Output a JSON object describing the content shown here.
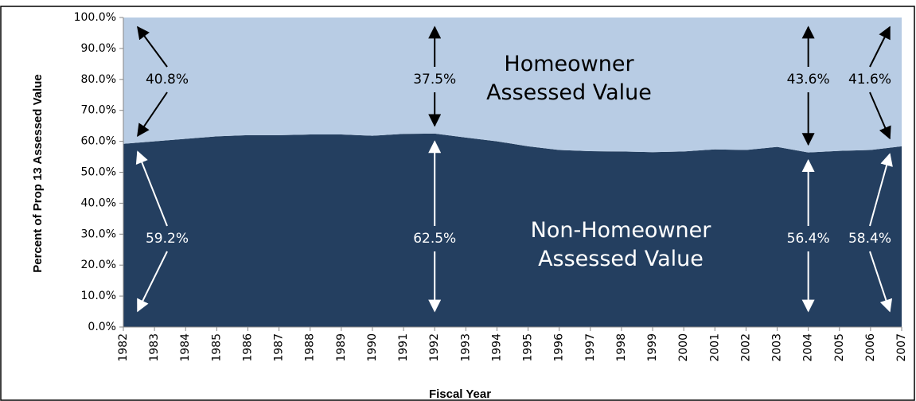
{
  "chart_data": {
    "type": "stacked-area",
    "x_label": "Fiscal Year",
    "y_label": "Percent of Prop 13 Assessed Value",
    "categories": [
      "1982",
      "1983",
      "1984",
      "1985",
      "1986",
      "1987",
      "1988",
      "1989",
      "1990",
      "1991",
      "1992",
      "1993",
      "1994",
      "1995",
      "1996",
      "1997",
      "1998",
      "1999",
      "2000",
      "2001",
      "2002",
      "2003",
      "2004",
      "2005",
      "2006",
      "2007"
    ],
    "series": [
      {
        "name": "Non-Homeowner Assessed Value",
        "color": "#243f60",
        "label_color": "#ffffff",
        "values": [
          59.2,
          60.0,
          60.8,
          61.6,
          62.0,
          62.0,
          62.2,
          62.2,
          61.8,
          62.4,
          62.5,
          61.2,
          60.0,
          58.4,
          57.2,
          56.8,
          56.7,
          56.5,
          56.7,
          57.4,
          57.2,
          58.2,
          56.4,
          56.9,
          57.2,
          58.4
        ],
        "value_labels": [
          "59.2%",
          null,
          null,
          null,
          null,
          null,
          null,
          null,
          null,
          null,
          "62.5%",
          null,
          null,
          null,
          null,
          null,
          null,
          null,
          null,
          null,
          null,
          null,
          "56.4%",
          null,
          null,
          "58.4%"
        ]
      },
      {
        "name": "Homeowner Assessed Value",
        "color": "#b8cce4",
        "label_color": "#000000",
        "values": [
          40.8,
          40.0,
          39.2,
          38.4,
          38.0,
          38.0,
          37.8,
          37.8,
          38.2,
          37.6,
          37.5,
          38.8,
          40.0,
          41.6,
          42.8,
          43.2,
          43.3,
          43.5,
          43.3,
          42.6,
          42.8,
          41.8,
          43.6,
          43.1,
          42.8,
          41.6
        ],
        "value_labels": [
          "40.8%",
          null,
          null,
          null,
          null,
          null,
          null,
          null,
          null,
          null,
          "37.5%",
          null,
          null,
          null,
          null,
          null,
          null,
          null,
          null,
          null,
          null,
          null,
          "43.6%",
          null,
          null,
          "41.6%"
        ]
      }
    ],
    "ylim": [
      0,
      100
    ],
    "yticks": [
      {
        "value": 0,
        "label": "0.0%"
      },
      {
        "value": 10,
        "label": "10.0%"
      },
      {
        "value": 20,
        "label": "20.0%"
      },
      {
        "value": 30,
        "label": "30.0%"
      },
      {
        "value": 40,
        "label": "40.0%"
      },
      {
        "value": 50,
        "label": "50.0%"
      },
      {
        "value": 60,
        "label": "60.0%"
      },
      {
        "value": 70,
        "label": "70.0%"
      },
      {
        "value": 80,
        "label": "80.0%"
      },
      {
        "value": 90,
        "label": "90.0%"
      },
      {
        "value": 100,
        "label": "100.0%"
      }
    ],
    "grid": false
  }
}
